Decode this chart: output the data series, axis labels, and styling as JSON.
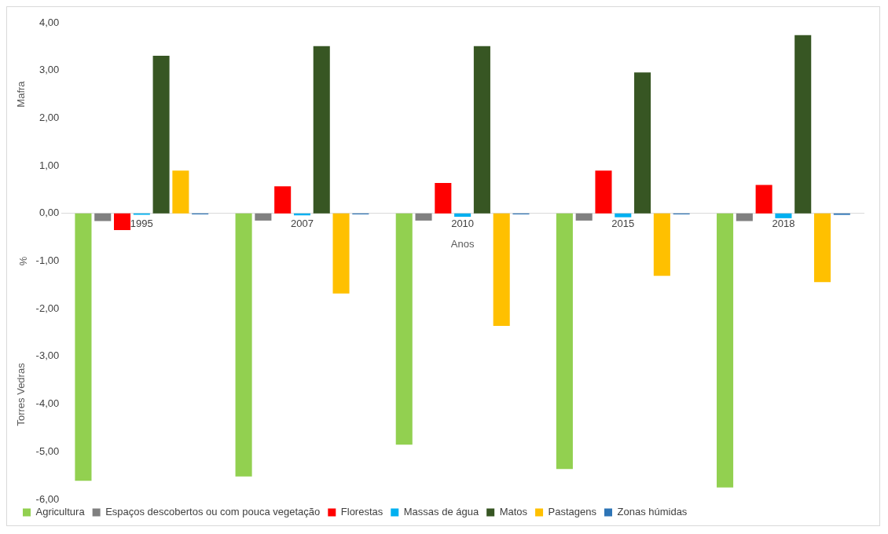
{
  "chart_data": {
    "type": "bar",
    "ylabel": "%",
    "xlabel": "Anos",
    "annotations": [
      "Mafra",
      "Torres Vedras"
    ],
    "categories": [
      "1995",
      "2007",
      "2010",
      "2015",
      "2018"
    ],
    "series": [
      {
        "name": "Agricultura",
        "color": "#92d050",
        "values": [
          -5.61,
          -5.52,
          -4.85,
          -5.36,
          -5.75
        ]
      },
      {
        "name": "Espaços descobertos ou com pouca vegetação",
        "color": "#808080",
        "values": [
          -0.16,
          -0.15,
          -0.15,
          -0.15,
          -0.16
        ]
      },
      {
        "name": "Florestas",
        "color": "#ff0000",
        "values": [
          -0.35,
          0.57,
          0.64,
          0.9,
          0.6
        ]
      },
      {
        "name": "Massas de água",
        "color": "#00b0f0",
        "values": [
          -0.03,
          -0.04,
          -0.07,
          -0.08,
          -0.1
        ]
      },
      {
        "name": "Matos",
        "color": "#375623",
        "values": [
          3.31,
          3.51,
          3.51,
          2.96,
          3.74
        ]
      },
      {
        "name": "Pastagens",
        "color": "#ffc000",
        "values": [
          0.9,
          -1.68,
          -2.36,
          -1.31,
          -1.44
        ]
      },
      {
        "name": "Zonas húmidas",
        "color": "#2e75b6",
        "values": [
          -0.02,
          -0.02,
          -0.02,
          -0.02,
          -0.03
        ]
      }
    ],
    "ylim": [
      -6,
      4
    ],
    "yticks": [
      {
        "value": -6,
        "label": "-6,00"
      },
      {
        "value": -5,
        "label": "-5,00"
      },
      {
        "value": -4,
        "label": "-4,00"
      },
      {
        "value": -3,
        "label": "-3,00"
      },
      {
        "value": -2,
        "label": "-2,00"
      },
      {
        "value": -1,
        "label": "-1,00"
      },
      {
        "value": 0,
        "label": "0,00"
      },
      {
        "value": 1,
        "label": "1,00"
      },
      {
        "value": 2,
        "label": "2,00"
      },
      {
        "value": 3,
        "label": "3,00"
      },
      {
        "value": 4,
        "label": "4,00"
      }
    ],
    "grid": false,
    "legend": "bottom"
  }
}
